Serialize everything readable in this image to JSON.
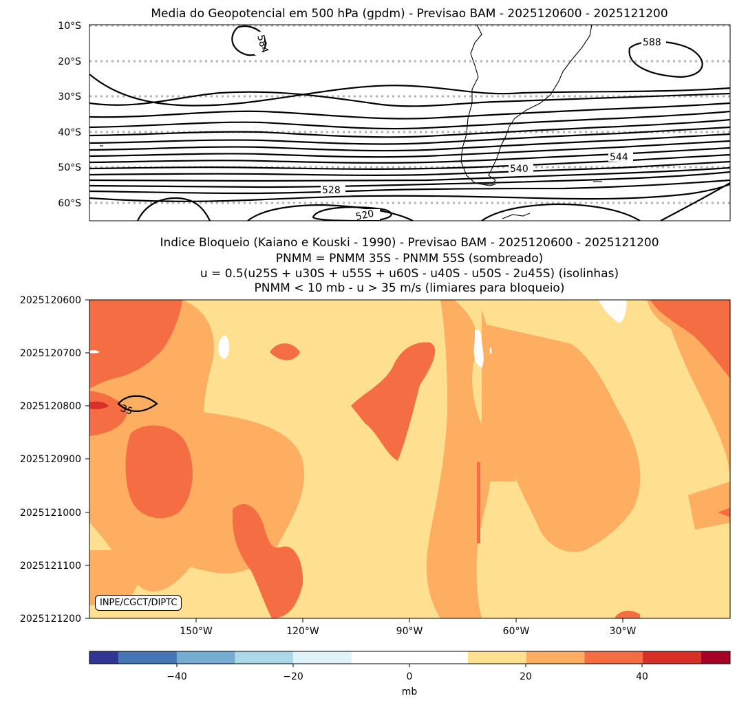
{
  "chart_data": [
    {
      "type": "contour",
      "title": "Media do Geopotencial em 500 hPa (gpdm) - Previsao BAM - 2025120600 - 2025121200",
      "ytick_labels": [
        "10°S",
        "20°S",
        "30°S",
        "40°S",
        "50°S",
        "60°S"
      ],
      "ylim": [
        -65,
        -10
      ],
      "contour_labels": [
        "584",
        "588",
        "544",
        "540",
        "528",
        "520"
      ],
      "grid": "dotted latitude lines"
    },
    {
      "type": "heatmap",
      "title_lines": [
        "Indice Bloqueio (Kaiano e Kouski - 1990) - Previsao BAM - 2025120600 - 2025121200",
        "PNMM = PNMM 35S - PNMM 55S (sombreado)",
        "u = 0.5(u25S + u30S + u55S + u60S - u40S - u50S - 2u45S) (isolinhas)",
        "PNMM < 10 mb - u > 35 m/s (limiares para bloqueio)"
      ],
      "ytick_labels": [
        "2025120600",
        "2025120700",
        "2025120800",
        "2025120900",
        "2025121000",
        "2025121100",
        "2025121200"
      ],
      "xtick_labels": [
        "150°W",
        "120°W",
        "90°W",
        "60°W",
        "30°W"
      ],
      "xlim": [
        -180,
        0
      ],
      "contour_labels": [
        "35"
      ],
      "credit": "INPE/CGCT/DIPTC",
      "colorbar": {
        "label": "mb",
        "tick_labels": [
          "−40",
          "−20",
          "0",
          "20",
          "40"
        ],
        "levels": [
          -55,
          -50,
          -40,
          -30,
          -20,
          -10,
          10,
          20,
          30,
          40,
          50,
          55
        ],
        "colors": [
          "#313695",
          "#4575b4",
          "#74add1",
          "#abd9e9",
          "#e0f3f8",
          "#ffffff",
          "#fee090",
          "#fdae61",
          "#f46d43",
          "#d73027",
          "#a50026"
        ]
      }
    }
  ]
}
